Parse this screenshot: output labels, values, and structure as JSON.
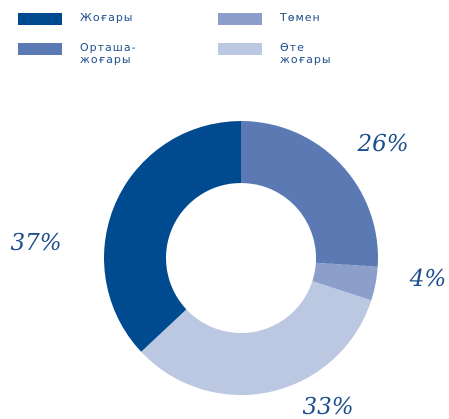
{
  "chart_data": {
    "type": "donut",
    "categories": [
      "Орташа-жоғары",
      "Төмен",
      "Өте жоғары",
      "Жоғары"
    ],
    "values": [
      26,
      4,
      33,
      37
    ],
    "value_labels": [
      "26%",
      "4%",
      "33%",
      "37%"
    ],
    "colors": [
      "#5b7ab4",
      "#8c9fcb",
      "#bcc8e1",
      "#004a8f"
    ],
    "legend": "top",
    "legend_order": [
      3,
      1,
      0,
      2
    ]
  }
}
